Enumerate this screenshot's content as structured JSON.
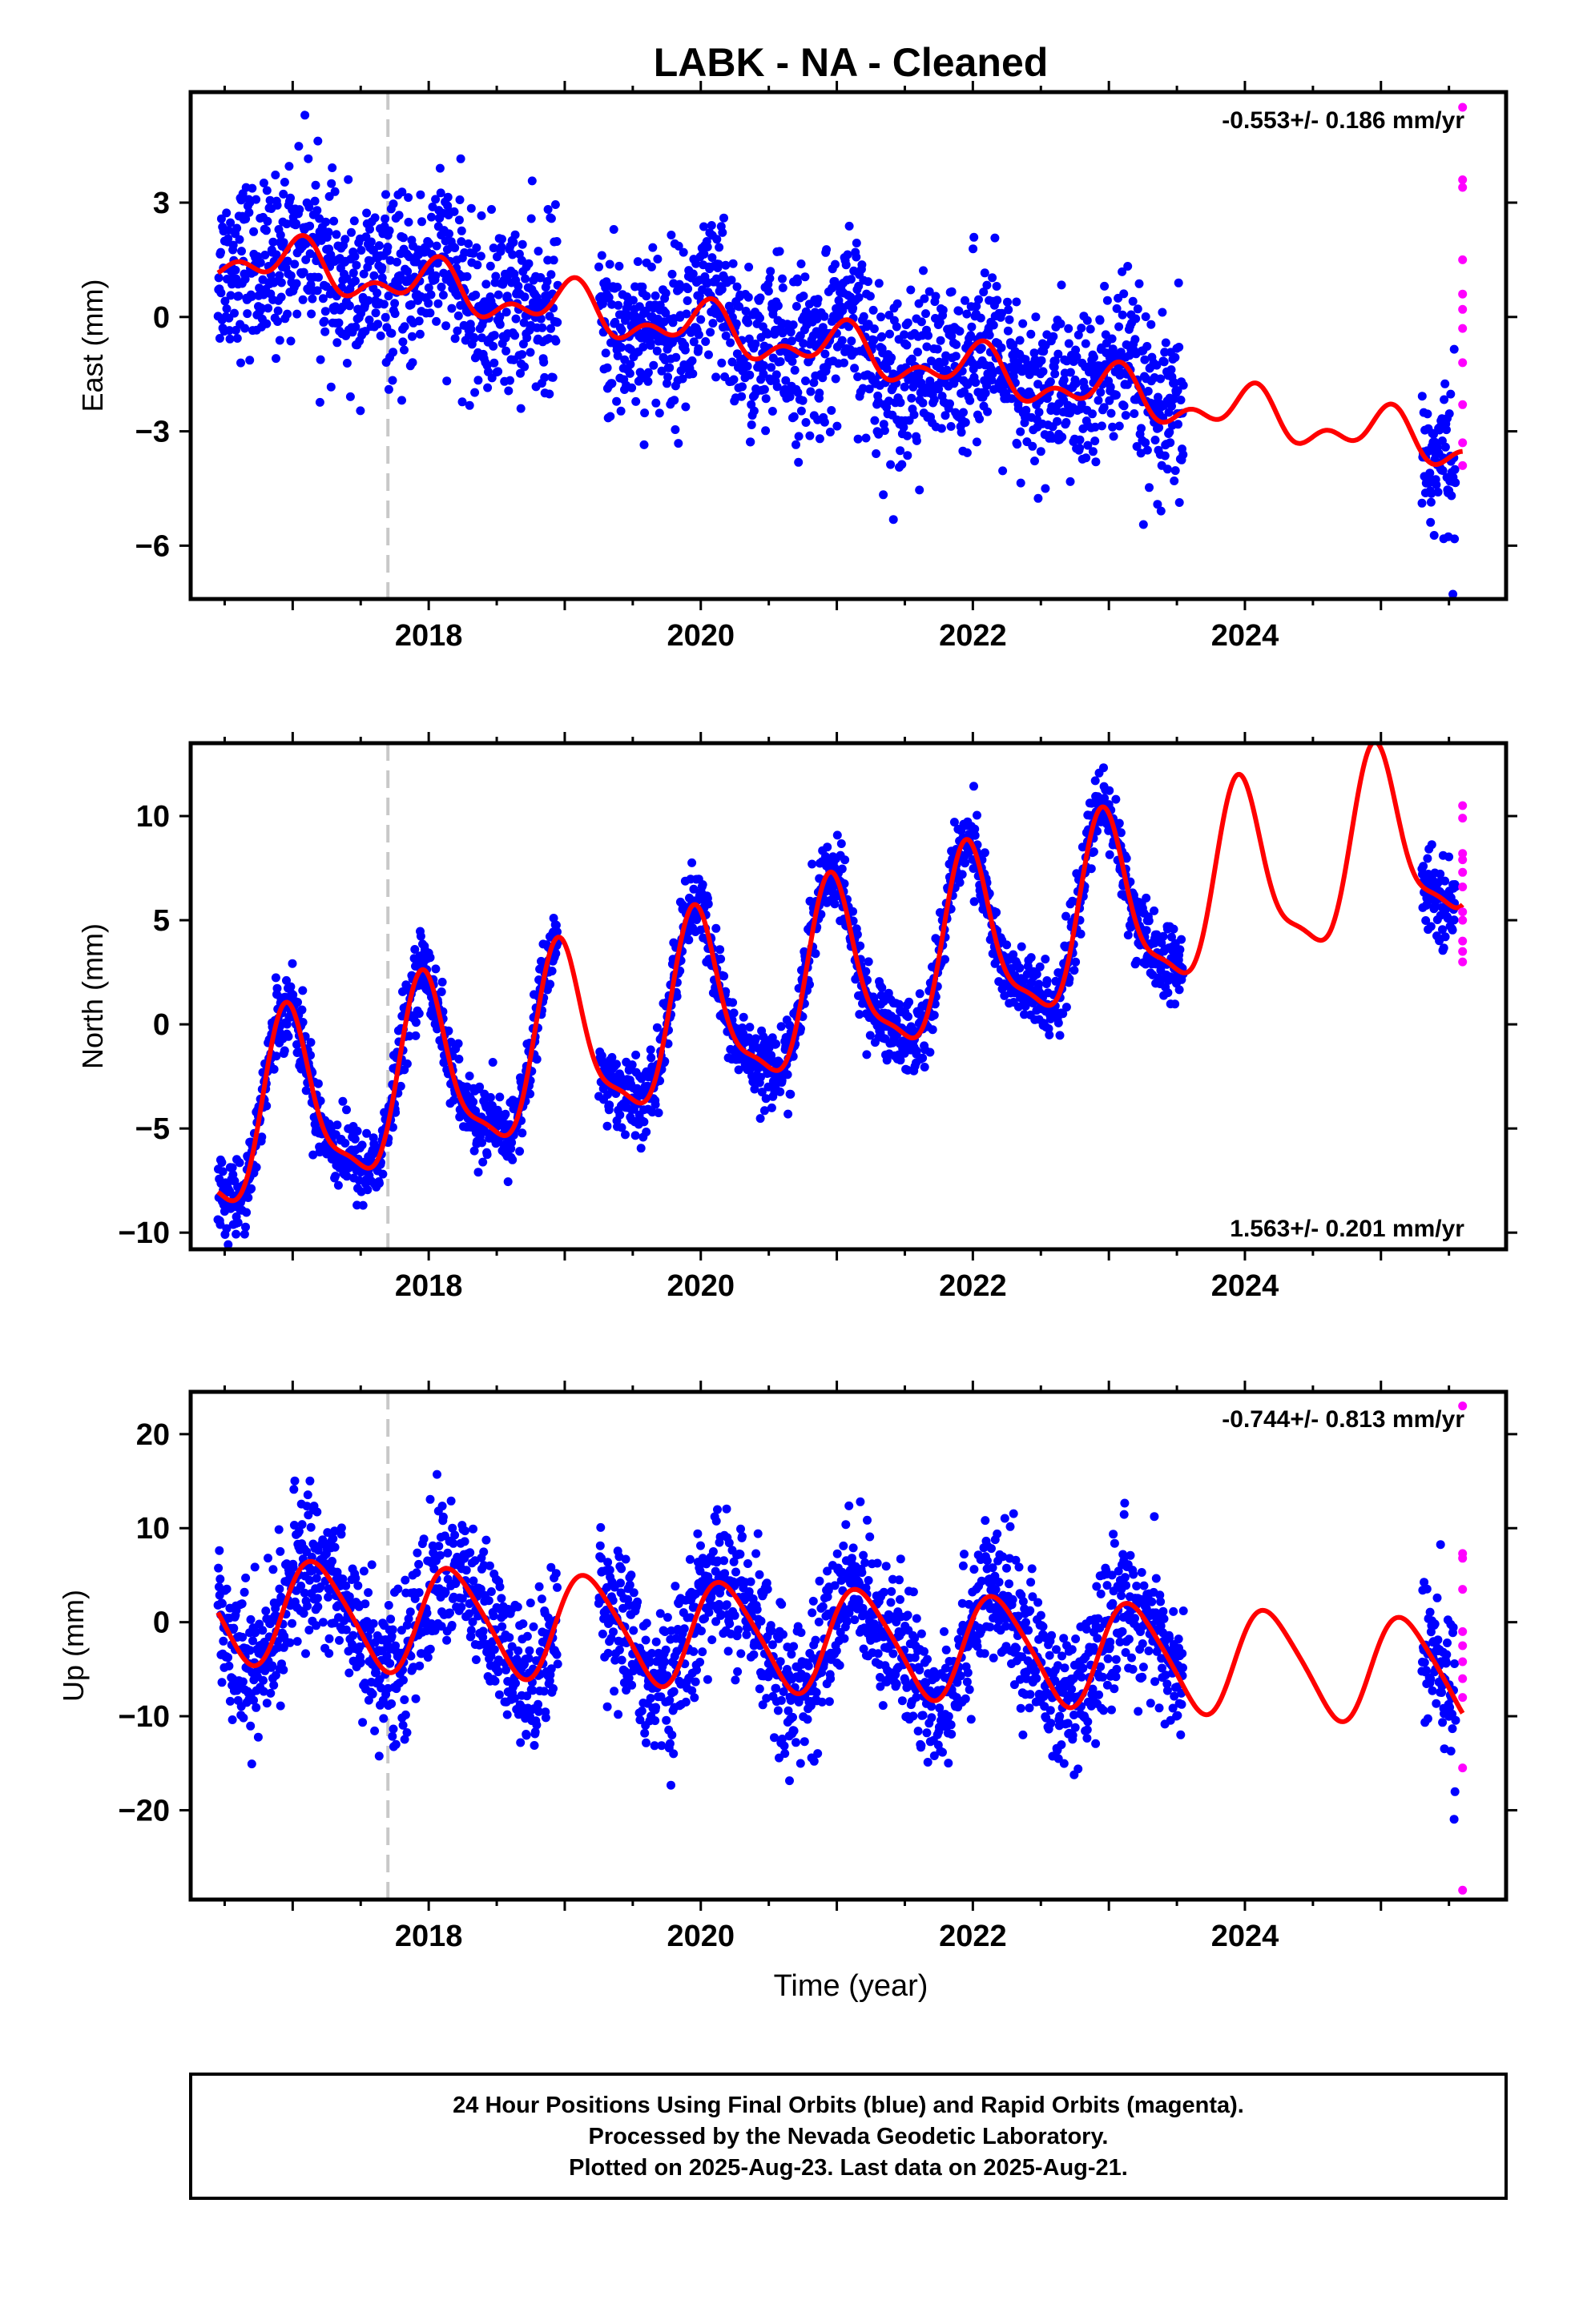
{
  "title": "LABK  - NA - Cleaned",
  "xlabel": "Time (year)",
  "footer": {
    "line1": "24 Hour Positions Using Final Orbits (blue) and Rapid Orbits (magenta).",
    "line2": "Processed by the Nevada Geodetic Laboratory.",
    "line3": "Plotted on 2025-Aug-23. Last data on 2025-Aug-21."
  },
  "colors": {
    "final_orbits": "#0000ff",
    "rapid_orbits": "#ff00ff",
    "model_fit": "#ff0000",
    "equipment_change": "#c8c8c8"
  },
  "chart_data": [
    {
      "type": "scatter",
      "panel": "east",
      "ylabel": "East (mm)",
      "ylim": [
        -7.4,
        5.9
      ],
      "yticks": [
        3,
        0,
        -3,
        -6
      ],
      "xlim": [
        2016.25,
        2025.92
      ],
      "xticks": [
        2018,
        2020,
        2022,
        2024
      ],
      "rate_label": "-0.553+/- 0.186 mm/yr",
      "rate_position": "top-right",
      "trend": {
        "rate": -0.553,
        "offset": 1.35,
        "ref_year": 2017.0
      },
      "seasonal": {
        "annual_amp": 0.5,
        "annual_phase": 1.3,
        "semiannual_amp": 0.35,
        "semiannual_phase": 0.4
      },
      "scatter_sd": 1.1,
      "equipment_change_year": 2017.7,
      "final_data_ranges": [
        [
          2016.45,
          2018.95
        ],
        [
          2019.25,
          2023.55
        ],
        [
          2025.3,
          2025.55
        ]
      ],
      "model_range": [
        2016.45,
        2025.6
      ],
      "rapid_values": [
        5.5,
        3.6,
        3.4,
        1.5,
        0.6,
        0.2,
        -0.3,
        -1.2,
        -2.3,
        -3.3,
        -3.9
      ]
    },
    {
      "type": "scatter",
      "panel": "north",
      "ylabel": "North (mm)",
      "ylim": [
        -10.8,
        13.5
      ],
      "yticks": [
        10,
        5,
        0,
        -5,
        -10
      ],
      "xlim": [
        2016.25,
        2025.92
      ],
      "xticks": [
        2018,
        2020,
        2022,
        2024
      ],
      "rate_label": "1.563+/- 0.201 mm/yr",
      "rate_position": "bottom-right",
      "trend": {
        "rate": 1.563,
        "offset": -4.2,
        "ref_year": 2017.0
      },
      "seasonal": {
        "annual_amp": 4.2,
        "annual_phase": 1.75,
        "semiannual_amp": 1.2,
        "semiannual_phase": 2.4
      },
      "scatter_sd": 0.9,
      "equipment_change_year": 2017.7,
      "final_data_ranges": [
        [
          2016.45,
          2018.95
        ],
        [
          2019.25,
          2023.55
        ],
        [
          2025.3,
          2025.55
        ]
      ],
      "model_range": [
        2016.45,
        2025.6
      ],
      "rapid_values": [
        10.5,
        9.9,
        8.2,
        7.9,
        7.3,
        6.6,
        5.4,
        5.0,
        4.0,
        3.5,
        3.0
      ]
    },
    {
      "type": "scatter",
      "panel": "up",
      "ylabel": "Up (mm)",
      "ylim": [
        -29.5,
        24.5
      ],
      "yticks": [
        20,
        10,
        0,
        -10,
        -20
      ],
      "xlim": [
        2016.25,
        2025.92
      ],
      "xticks": [
        2018,
        2020,
        2022,
        2024
      ],
      "rate_label": "-0.744+/- 0.813 mm/yr",
      "rate_position": "top-right",
      "trend": {
        "rate": -0.744,
        "offset": 1.0,
        "ref_year": 2017.0
      },
      "seasonal": {
        "annual_amp": 5.5,
        "annual_phase": 0.45,
        "semiannual_amp": 0.8,
        "semiannual_phase": 1.1
      },
      "scatter_sd": 3.8,
      "equipment_change_year": 2017.7,
      "final_data_ranges": [
        [
          2016.45,
          2018.95
        ],
        [
          2019.25,
          2023.55
        ],
        [
          2025.3,
          2025.55
        ]
      ],
      "model_range": [
        2016.45,
        2025.6
      ],
      "rapid_values": [
        23.0,
        7.3,
        6.8,
        3.5,
        -1.0,
        -2.5,
        -4.2,
        -6.0,
        -8.0,
        -15.5,
        -28.5
      ]
    }
  ]
}
